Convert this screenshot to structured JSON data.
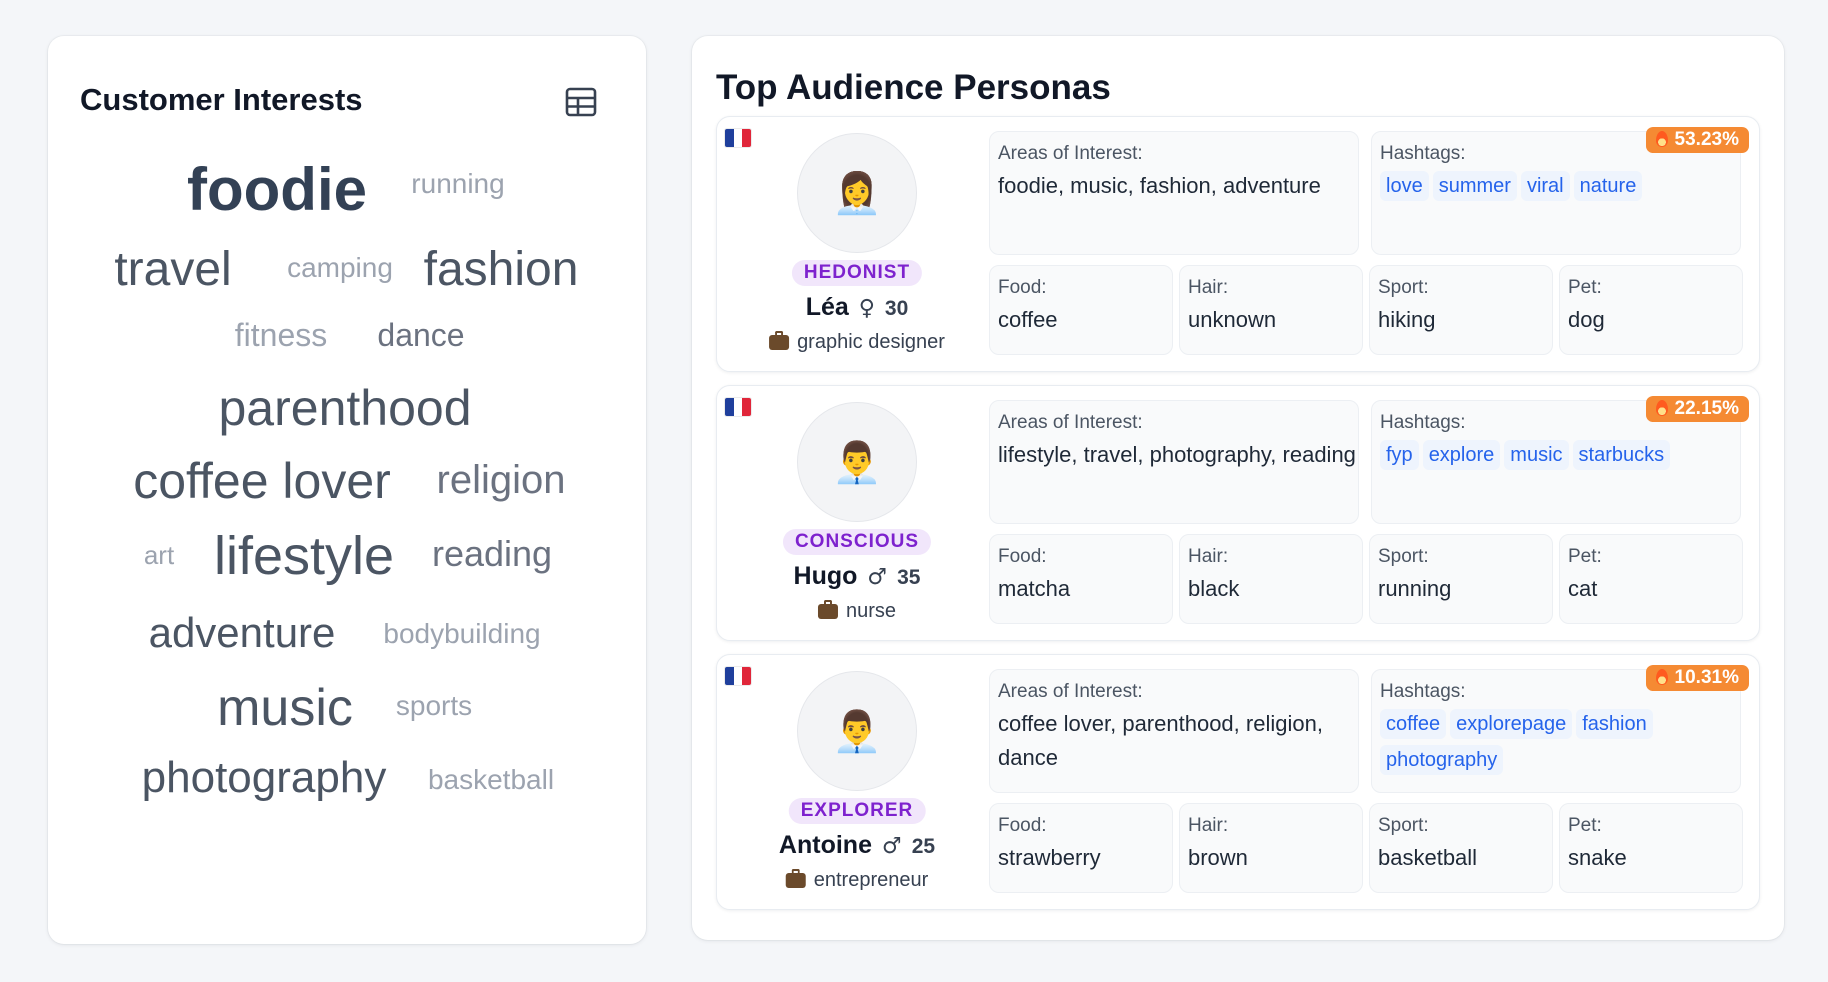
{
  "interests": {
    "title": "Customer Interests",
    "view_icon": "table-icon",
    "words": [
      {
        "text": "foodie",
        "size": 60,
        "color": "#334155",
        "weight": 700
      },
      {
        "text": "running",
        "size": 28,
        "color": "#9ca3af",
        "weight": 400
      },
      {
        "text": "travel",
        "size": 48,
        "color": "#4b5563",
        "weight": 400
      },
      {
        "text": "camping",
        "size": 28,
        "color": "#9ca3af",
        "weight": 400
      },
      {
        "text": "fashion",
        "size": 48,
        "color": "#4b5563",
        "weight": 400
      },
      {
        "text": "fitness",
        "size": 32,
        "color": "#9ca3af",
        "weight": 400
      },
      {
        "text": "dance",
        "size": 32,
        "color": "#6b7280",
        "weight": 400
      },
      {
        "text": "parenthood",
        "size": 50,
        "color": "#4b5563",
        "weight": 400
      },
      {
        "text": "coffee lover",
        "size": 50,
        "color": "#4b5563",
        "weight": 400
      },
      {
        "text": "religion",
        "size": 40,
        "color": "#6b7280",
        "weight": 400
      },
      {
        "text": "art",
        "size": 26,
        "color": "#9ca3af",
        "weight": 400
      },
      {
        "text": "lifestyle",
        "size": 54,
        "color": "#4b5563",
        "weight": 400
      },
      {
        "text": "reading",
        "size": 36,
        "color": "#6b7280",
        "weight": 400
      },
      {
        "text": "adventure",
        "size": 42,
        "color": "#4b5563",
        "weight": 400
      },
      {
        "text": "bodybuilding",
        "size": 28,
        "color": "#9ca3af",
        "weight": 400
      },
      {
        "text": "music",
        "size": 52,
        "color": "#4b5563",
        "weight": 400
      },
      {
        "text": "sports",
        "size": 28,
        "color": "#9ca3af",
        "weight": 400
      },
      {
        "text": "photography",
        "size": 44,
        "color": "#4b5563",
        "weight": 400
      },
      {
        "text": "basketball",
        "size": 28,
        "color": "#9ca3af",
        "weight": 400
      }
    ]
  },
  "personas": {
    "title": "Top Audience Personas",
    "labels": {
      "areas": "Areas of Interest:",
      "hashtags": "Hashtags:",
      "food": "Food:",
      "hair": "Hair:",
      "sport": "Sport:",
      "pet": "Pet:"
    },
    "items": [
      {
        "country_flag": "france-flag",
        "avatar": "👩‍💼",
        "type": "HEDONIST",
        "name": "Léa",
        "gender": "♀",
        "age": "30",
        "job": "graphic designer",
        "percent": "53.23%",
        "areas": "foodie, music, fashion, adventure",
        "hashtags": [
          "love",
          "summer",
          "viral",
          "nature"
        ],
        "food": "coffee",
        "hair": "unknown",
        "sport": "hiking",
        "pet": "dog"
      },
      {
        "country_flag": "france-flag",
        "avatar": "👨‍💼",
        "type": "CONSCIOUS",
        "name": "Hugo",
        "gender": "♂",
        "age": "35",
        "job": "nurse",
        "percent": "22.15%",
        "areas": "lifestyle, travel, photography, reading",
        "hashtags": [
          "fyp",
          "explore",
          "music",
          "starbucks"
        ],
        "food": "matcha",
        "hair": "black",
        "sport": "running",
        "pet": "cat"
      },
      {
        "country_flag": "france-flag",
        "avatar": "👨‍💼",
        "type": "EXPLORER",
        "name": "Antoine",
        "gender": "♂",
        "age": "25",
        "job": "entrepreneur",
        "percent": "10.31%",
        "areas": "coffee lover, parenthood, religion, dance",
        "hashtags": [
          "coffee",
          "explorepage",
          "fashion",
          "photography"
        ],
        "food": "strawberry",
        "hair": "brown",
        "sport": "basketball",
        "pet": "snake"
      }
    ]
  }
}
